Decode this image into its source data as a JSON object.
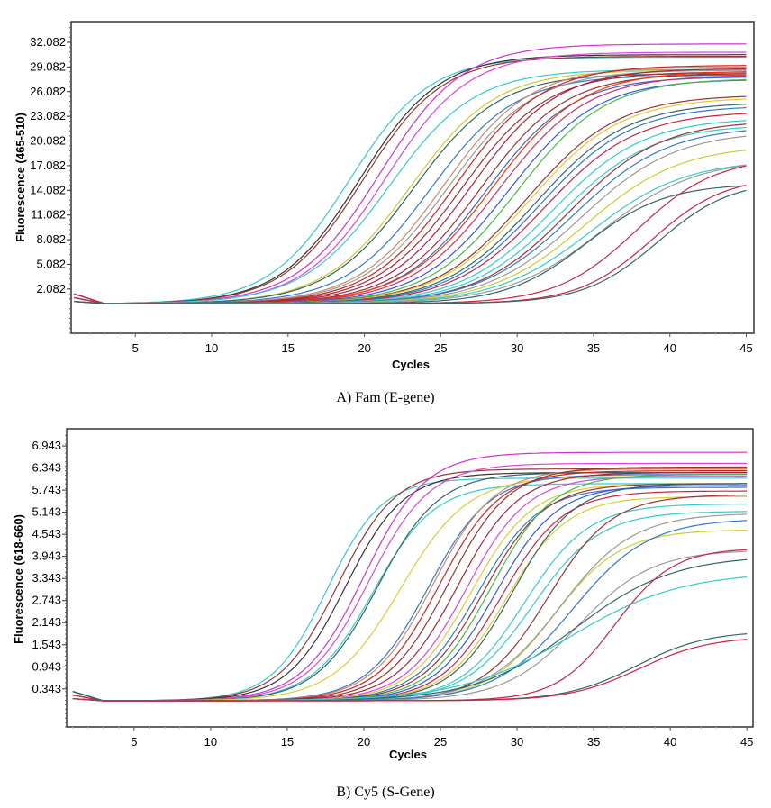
{
  "chart_data": [
    {
      "type": "line",
      "id": "fam",
      "caption": "A) Fam (E-gene)",
      "xlabel": "Cycles",
      "ylabel": "Fluorescence (465-510)",
      "xlim": [
        0.8,
        45.5
      ],
      "ylim": [
        -3.3,
        34.6
      ],
      "xticks": [
        5,
        10,
        15,
        20,
        25,
        30,
        35,
        40,
        45
      ],
      "xtick_labels": [
        "5",
        "10",
        "15",
        "20",
        "25",
        "30",
        "35",
        "40",
        "45"
      ],
      "yticks": [
        2.082,
        5.082,
        8.082,
        11.082,
        14.082,
        17.082,
        20.082,
        23.082,
        26.082,
        29.082,
        32.082
      ],
      "ytick_labels": [
        "2.082",
        "5.082",
        "8.082",
        "11.082",
        "14.082",
        "17.082",
        "20.082",
        "23.082",
        "26.082",
        "29.082",
        "32.082"
      ],
      "grid": false,
      "legend": "none",
      "x_cycles": [
        1,
        45
      ],
      "series_model": "sigmoid: value(cycle) = baseline + plateau / (1 + exp(-(cycle - midpoint) / slope))",
      "baseline": 0.3,
      "series": [
        {
          "color": "#33cccc",
          "midpoint": 19.0,
          "plateau": 30.0,
          "slope": 2.6
        },
        {
          "color": "#333333",
          "midpoint": 19.7,
          "plateau": 30.3,
          "slope": 2.6
        },
        {
          "color": "#993333",
          "midpoint": 19.9,
          "plateau": 30.1,
          "slope": 2.6
        },
        {
          "color": "#cc33cc",
          "midpoint": 21.0,
          "plateau": 31.6,
          "slope": 2.7
        },
        {
          "color": "#dd44dd",
          "midpoint": 21.4,
          "plateau": 30.6,
          "slope": 2.7
        },
        {
          "color": "#33cccc",
          "midpoint": 21.6,
          "plateau": 28.5,
          "slope": 2.8
        },
        {
          "color": "#cccc33",
          "midpoint": 23.0,
          "plateau": 28.4,
          "slope": 2.8
        },
        {
          "color": "#336666",
          "midpoint": 23.2,
          "plateau": 28.0,
          "slope": 2.8
        },
        {
          "color": "#3377cc",
          "midpoint": 24.3,
          "plateau": 27.8,
          "slope": 2.8
        },
        {
          "color": "#cc8866",
          "midpoint": 25.2,
          "plateau": 28.8,
          "slope": 2.8
        },
        {
          "color": "#999999",
          "midpoint": 25.5,
          "plateau": 28.4,
          "slope": 2.8
        },
        {
          "color": "#cc2222",
          "midpoint": 26.0,
          "plateau": 29.0,
          "slope": 2.8
        },
        {
          "color": "#993333",
          "midpoint": 26.4,
          "plateau": 28.2,
          "slope": 2.8
        },
        {
          "color": "#aa2244",
          "midpoint": 27.0,
          "plateau": 28.6,
          "slope": 2.8
        },
        {
          "color": "#993333",
          "midpoint": 27.6,
          "plateau": 28.0,
          "slope": 2.8
        },
        {
          "color": "#3366cc",
          "midpoint": 28.0,
          "plateau": 27.6,
          "slope": 2.8
        },
        {
          "color": "#ff3300",
          "midpoint": 28.4,
          "plateau": 28.3,
          "slope": 2.9
        },
        {
          "color": "#cc3366",
          "midpoint": 28.8,
          "plateau": 27.8,
          "slope": 2.9
        },
        {
          "color": "#3355ee",
          "midpoint": 29.4,
          "plateau": 27.3,
          "slope": 2.9
        },
        {
          "color": "#44bb44",
          "midpoint": 30.0,
          "plateau": 27.4,
          "slope": 2.9
        },
        {
          "color": "#993333",
          "midpoint": 30.6,
          "plateau": 25.4,
          "slope": 3.0
        },
        {
          "color": "#ddcc33",
          "midpoint": 30.8,
          "plateau": 25.1,
          "slope": 3.0
        },
        {
          "color": "#336666",
          "midpoint": 31.2,
          "plateau": 24.5,
          "slope": 3.0
        },
        {
          "color": "#3377cc",
          "midpoint": 31.5,
          "plateau": 24.1,
          "slope": 3.0
        },
        {
          "color": "#cc2244",
          "midpoint": 31.8,
          "plateau": 23.4,
          "slope": 3.0
        },
        {
          "color": "#33cccc",
          "midpoint": 32.3,
          "plateau": 22.6,
          "slope": 3.0
        },
        {
          "color": "#33cccc",
          "midpoint": 32.8,
          "plateau": 21.8,
          "slope": 3.0
        },
        {
          "color": "#993333",
          "midpoint": 33.4,
          "plateau": 22.3,
          "slope": 3.0
        },
        {
          "color": "#3377cc",
          "midpoint": 33.7,
          "plateau": 21.6,
          "slope": 3.1
        },
        {
          "color": "#999999",
          "midpoint": 34.2,
          "plateau": 21.0,
          "slope": 3.1
        },
        {
          "color": "#cccc33",
          "midpoint": 34.5,
          "plateau": 19.3,
          "slope": 3.1
        },
        {
          "color": "#33cccc",
          "midpoint": 34.8,
          "plateau": 17.5,
          "slope": 3.1
        },
        {
          "color": "#999999",
          "midpoint": 35.5,
          "plateau": 17.6,
          "slope": 3.1
        },
        {
          "color": "#336666",
          "midpoint": 34.5,
          "plateau": 14.6,
          "slope": 2.6
        },
        {
          "color": "#cc2244",
          "midpoint": 37.8,
          "plateau": 17.8,
          "slope": 2.6
        },
        {
          "color": "#cc2244",
          "midpoint": 38.8,
          "plateau": 15.5,
          "slope": 2.4
        },
        {
          "color": "#336666",
          "midpoint": 39.2,
          "plateau": 15.0,
          "slope": 2.4
        }
      ]
    },
    {
      "type": "line",
      "id": "cy5",
      "caption": "B) Cy5 (S-Gene)",
      "xlabel": "Cycles",
      "ylabel": "Fluorescence (618-660)",
      "xlim": [
        0.6,
        45.4
      ],
      "ylim": [
        -0.69,
        7.41
      ],
      "xticks": [
        5,
        10,
        15,
        20,
        25,
        30,
        35,
        40,
        45
      ],
      "xtick_labels": [
        "5",
        "10",
        "15",
        "20",
        "25",
        "30",
        "35",
        "40",
        "45"
      ],
      "yticks": [
        0.343,
        0.943,
        1.543,
        2.143,
        2.743,
        3.343,
        3.943,
        4.543,
        5.143,
        5.743,
        6.343,
        6.943
      ],
      "ytick_labels": [
        "0.343",
        "0.943",
        "1.543",
        "2.143",
        "2.743",
        "3.343",
        "3.943",
        "4.543",
        "5.143",
        "5.743",
        "6.343",
        "6.943"
      ],
      "grid": false,
      "legend": "none",
      "x_cycles": [
        1,
        45
      ],
      "series_model": "sigmoid: value(cycle) = baseline + plateau / (1 + exp(-(cycle - midpoint) / slope))",
      "baseline": 0.02,
      "series": [
        {
          "color": "#33cccc",
          "midpoint": 17.6,
          "plateau": 6.05,
          "slope": 1.8
        },
        {
          "color": "#993333",
          "midpoint": 18.3,
          "plateau": 6.3,
          "slope": 1.9
        },
        {
          "color": "#333333",
          "midpoint": 18.8,
          "plateau": 6.2,
          "slope": 1.9
        },
        {
          "color": "#cc33cc",
          "midpoint": 20.0,
          "plateau": 6.75,
          "slope": 2.0
        },
        {
          "color": "#dd44dd",
          "midpoint": 20.3,
          "plateau": 6.45,
          "slope": 2.0
        },
        {
          "color": "#33cccc",
          "midpoint": 20.6,
          "plateau": 5.9,
          "slope": 2.0
        },
        {
          "color": "#336666",
          "midpoint": 20.9,
          "plateau": 6.2,
          "slope": 2.0
        },
        {
          "color": "#ddcc33",
          "midpoint": 22.4,
          "plateau": 6.1,
          "slope": 2.2
        },
        {
          "color": "#3377cc",
          "midpoint": 24.2,
          "plateau": 6.15,
          "slope": 2.0
        },
        {
          "color": "#cc8866",
          "midpoint": 24.5,
          "plateau": 6.3,
          "slope": 2.0
        },
        {
          "color": "#cc2222",
          "midpoint": 24.9,
          "plateau": 6.25,
          "slope": 2.0
        },
        {
          "color": "#993333",
          "midpoint": 25.5,
          "plateau": 6.35,
          "slope": 2.0
        },
        {
          "color": "#aa2244",
          "midpoint": 26.1,
          "plateau": 6.2,
          "slope": 2.0
        },
        {
          "color": "#dd44dd",
          "midpoint": 26.7,
          "plateau": 6.1,
          "slope": 2.0
        },
        {
          "color": "#ddcc33",
          "midpoint": 27.0,
          "plateau": 5.9,
          "slope": 2.0
        },
        {
          "color": "#3377cc",
          "midpoint": 27.4,
          "plateau": 5.8,
          "slope": 2.0
        },
        {
          "color": "#993333",
          "midpoint": 27.8,
          "plateau": 5.9,
          "slope": 2.0
        },
        {
          "color": "#44bb44",
          "midpoint": 28.3,
          "plateau": 6.15,
          "slope": 2.0
        },
        {
          "color": "#3355ee",
          "midpoint": 28.6,
          "plateau": 5.85,
          "slope": 2.0
        },
        {
          "color": "#cc2244",
          "midpoint": 29.0,
          "plateau": 5.7,
          "slope": 2.0
        },
        {
          "color": "#ddcc33",
          "midpoint": 29.3,
          "plateau": 5.55,
          "slope": 2.0
        },
        {
          "color": "#336666",
          "midpoint": 29.7,
          "plateau": 5.9,
          "slope": 2.0
        },
        {
          "color": "#33cccc",
          "midpoint": 30.5,
          "plateau": 5.35,
          "slope": 2.1
        },
        {
          "color": "#33cccc",
          "midpoint": 31.0,
          "plateau": 5.15,
          "slope": 2.2
        },
        {
          "color": "#993333",
          "midpoint": 32.0,
          "plateau": 5.6,
          "slope": 2.1
        },
        {
          "color": "#cccc33",
          "midpoint": 32.4,
          "plateau": 4.65,
          "slope": 2.2
        },
        {
          "color": "#999999",
          "midpoint": 32.8,
          "plateau": 5.1,
          "slope": 2.4
        },
        {
          "color": "#3377cc",
          "midpoint": 33.6,
          "plateau": 4.95,
          "slope": 2.5
        },
        {
          "color": "#999999",
          "midpoint": 34.0,
          "plateau": 4.1,
          "slope": 2.4
        },
        {
          "color": "#336666",
          "midpoint": 33.8,
          "plateau": 3.95,
          "slope": 3.2
        },
        {
          "color": "#33cccc",
          "midpoint": 33.5,
          "plateau": 3.5,
          "slope": 3.6
        },
        {
          "color": "#cc2244",
          "midpoint": 36.4,
          "plateau": 4.15,
          "slope": 1.9
        },
        {
          "color": "#336666",
          "midpoint": 37.8,
          "plateau": 1.9,
          "slope": 2.3
        },
        {
          "color": "#cc2244",
          "midpoint": 38.0,
          "plateau": 1.75,
          "slope": 2.3
        }
      ]
    }
  ]
}
